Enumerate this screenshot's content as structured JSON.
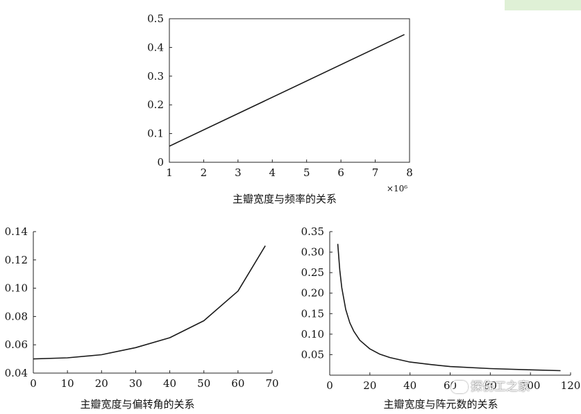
{
  "watermark": {
    "text": "探伤工之家"
  },
  "chart_data": [
    {
      "type": "line",
      "title": "主瓣宽度与频率的关系",
      "xlim": [
        1,
        8
      ],
      "ylim": [
        0,
        0.5
      ],
      "x_ticks": [
        "1",
        "2",
        "3",
        "4",
        "5",
        "6",
        "7",
        "8"
      ],
      "y_ticks": [
        "0",
        "0.1",
        "0.2",
        "0.3",
        "0.4",
        "0.5"
      ],
      "x_multiplier_label": "×10⁶",
      "x": [
        1,
        7.85
      ],
      "y": [
        0.056,
        0.445
      ]
    },
    {
      "type": "line",
      "title": "主瓣宽度与偏转角的关系",
      "xlim": [
        0,
        70
      ],
      "ylim": [
        0.04,
        0.14
      ],
      "x_ticks": [
        "0",
        "10",
        "20",
        "30",
        "40",
        "50",
        "60",
        "70"
      ],
      "y_ticks": [
        "0.04",
        "0.06",
        "0.08",
        "0.10",
        "0.12",
        "0.14"
      ],
      "x": [
        0,
        10,
        20,
        30,
        40,
        50,
        60,
        68
      ],
      "y": [
        0.05,
        0.0508,
        0.053,
        0.058,
        0.065,
        0.077,
        0.098,
        0.13
      ]
    },
    {
      "type": "line",
      "title": "主瓣宽度与阵元数的关系",
      "xlim": [
        0,
        120
      ],
      "ylim": [
        0,
        0.35
      ],
      "x_ticks": [
        "0",
        "20",
        "40",
        "60",
        "80",
        "100",
        "120"
      ],
      "y_ticks": [
        "0.05",
        "0.10",
        "0.15",
        "0.20",
        "0.25",
        "0.30",
        "0.35"
      ],
      "x": [
        4,
        5,
        6,
        8,
        10,
        12,
        15,
        20,
        25,
        30,
        40,
        50,
        60,
        80,
        100,
        115
      ],
      "y": [
        0.32,
        0.256,
        0.213,
        0.16,
        0.128,
        0.107,
        0.085,
        0.064,
        0.051,
        0.043,
        0.032,
        0.026,
        0.021,
        0.016,
        0.013,
        0.011
      ]
    }
  ],
  "colors": {
    "line": "#1a1a1a",
    "axis": "#222222",
    "text": "#111111"
  }
}
